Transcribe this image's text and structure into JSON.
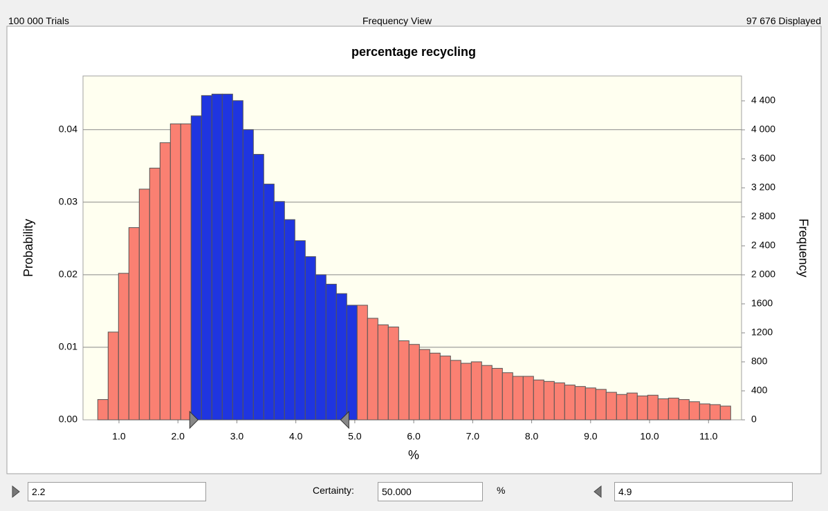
{
  "header": {
    "trials": "100 000 Trials",
    "view": "Frequency View",
    "displayed": "97 676 Displayed"
  },
  "chart_data": {
    "type": "histogram",
    "title": "percentage recycling",
    "xlabel": "%",
    "ylabel": "Probability",
    "y2label": "Frequency",
    "color": "#fa8072",
    "highlight_color": "#1f35e0",
    "background": "#fffff0",
    "grid": true,
    "bins": [
      0.64,
      0.816,
      0.992,
      1.168,
      1.344,
      1.52,
      1.696,
      1.872,
      2.048,
      2.224,
      2.4,
      2.576,
      2.752,
      2.928,
      3.104,
      3.28,
      3.456,
      3.632,
      3.808,
      3.984,
      4.16,
      4.336,
      4.512,
      4.688,
      4.864,
      5.04,
      5.216,
      5.392,
      5.568,
      5.744,
      5.92,
      6.096,
      6.272,
      6.448,
      6.624,
      6.8,
      6.976,
      7.152,
      7.328,
      7.504,
      7.68,
      7.856,
      8.032,
      8.208,
      8.384,
      8.56,
      8.736,
      8.912,
      9.088,
      9.264,
      9.44,
      9.616,
      9.792,
      9.968,
      10.144,
      10.32,
      10.496,
      10.672,
      10.848,
      11.024,
      11.2,
      11.376
    ],
    "values": [
      0.0028,
      0.0121,
      0.0202,
      0.0265,
      0.0318,
      0.0347,
      0.0382,
      0.0408,
      0.0408,
      0.0419,
      0.0447,
      0.0449,
      0.0449,
      0.044,
      0.04,
      0.0366,
      0.0325,
      0.0301,
      0.0276,
      0.0247,
      0.0225,
      0.02,
      0.0187,
      0.0174,
      0.0158,
      0.0158,
      0.014,
      0.0131,
      0.0128,
      0.0109,
      0.0104,
      0.0097,
      0.0092,
      0.0088,
      0.0082,
      0.0078,
      0.008,
      0.0075,
      0.0071,
      0.0065,
      0.006,
      0.006,
      0.0055,
      0.0053,
      0.0051,
      0.0048,
      0.0046,
      0.0044,
      0.0042,
      0.0038,
      0.0035,
      0.0037,
      0.0033,
      0.0034,
      0.0029,
      0.003,
      0.0028,
      0.0025,
      0.0022,
      0.0021,
      0.0019
    ],
    "xlim": [
      0.39,
      11.56
    ],
    "ylim": [
      0,
      0.0474
    ],
    "y2lim": [
      0,
      4743
    ],
    "xticks": [
      {
        "value": 1,
        "label": "1.0"
      },
      {
        "value": 2,
        "label": "2.0"
      },
      {
        "value": 3,
        "label": "3.0"
      },
      {
        "value": 4,
        "label": "4.0"
      },
      {
        "value": 5,
        "label": "5.0"
      },
      {
        "value": 6,
        "label": "6.0"
      },
      {
        "value": 7,
        "label": "7.0"
      },
      {
        "value": 8,
        "label": "8.0"
      },
      {
        "value": 9,
        "label": "9.0"
      },
      {
        "value": 10,
        "label": "10.0"
      },
      {
        "value": 11,
        "label": "11.0"
      }
    ],
    "yticks": [
      {
        "value": 0,
        "label": "0.00"
      },
      0.01,
      0.02,
      0.03,
      0.04
    ],
    "y2ticks": [
      0,
      400,
      800,
      1200,
      1600,
      {
        "value": 2000,
        "label": "2 000"
      },
      {
        "value": 2400,
        "label": "2 400"
      },
      {
        "value": 2800,
        "label": "2 800"
      },
      {
        "value": 3200,
        "label": "3 200"
      },
      {
        "value": 3600,
        "label": "3 600"
      },
      {
        "value": 4000,
        "label": "4 000"
      },
      {
        "value": 4400,
        "label": "4 400"
      }
    ]
  },
  "certainty": {
    "lower": 2.2,
    "label": "Certainty:",
    "value": "50.000",
    "unit": "%",
    "upper": 4.9
  }
}
